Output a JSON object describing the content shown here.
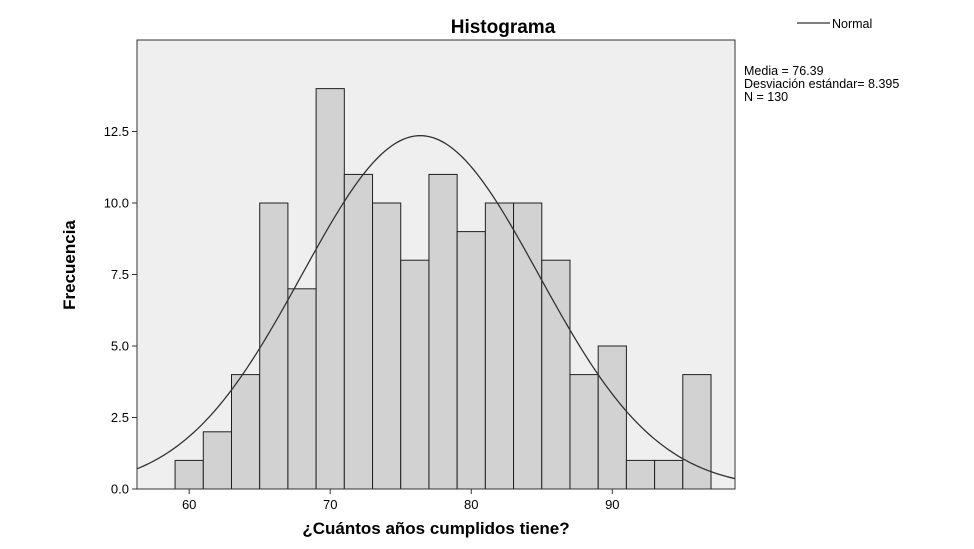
{
  "chart_data": {
    "type": "histogram",
    "title": "Histograma",
    "xlabel": "¿Cuántos años cumplidos tiene?",
    "ylabel": "Frecuencia",
    "bin_width": 2,
    "bins": [
      {
        "start": 59,
        "end": 61,
        "count": 1
      },
      {
        "start": 61,
        "end": 63,
        "count": 2
      },
      {
        "start": 63,
        "end": 65,
        "count": 4
      },
      {
        "start": 65,
        "end": 67,
        "count": 10
      },
      {
        "start": 67,
        "end": 69,
        "count": 7
      },
      {
        "start": 69,
        "end": 71,
        "count": 14
      },
      {
        "start": 71,
        "end": 73,
        "count": 11
      },
      {
        "start": 73,
        "end": 75,
        "count": 10
      },
      {
        "start": 75,
        "end": 77,
        "count": 8
      },
      {
        "start": 77,
        "end": 79,
        "count": 11
      },
      {
        "start": 79,
        "end": 81,
        "count": 9
      },
      {
        "start": 81,
        "end": 83,
        "count": 10
      },
      {
        "start": 83,
        "end": 85,
        "count": 10
      },
      {
        "start": 85,
        "end": 87,
        "count": 8
      },
      {
        "start": 87,
        "end": 89,
        "count": 4
      },
      {
        "start": 89,
        "end": 91,
        "count": 5
      },
      {
        "start": 91,
        "end": 93,
        "count": 1
      },
      {
        "start": 93,
        "end": 95,
        "count": 1
      },
      {
        "start": 95,
        "end": 97,
        "count": 4
      }
    ],
    "xlim": [
      56.3,
      98.7
    ],
    "ylim": [
      0,
      15.7
    ],
    "x_ticks": [
      60,
      70,
      80,
      90
    ],
    "y_ticks": [
      0.0,
      2.5,
      5.0,
      7.5,
      10.0,
      12.5
    ],
    "x_tick_labels": [
      "60",
      "70",
      "80",
      "90"
    ],
    "y_tick_labels": [
      "0.0",
      "2.5",
      "5.0",
      "7.5",
      "10.0",
      "12.5"
    ],
    "normal_curve": {
      "name": "Normal",
      "mean": 76.39,
      "sd": 8.395,
      "n": 130
    },
    "stats_lines": [
      "Media = 76.39",
      "Desviación estándar= 8.395",
      "N = 130"
    ],
    "legend": {
      "position": "top-right",
      "label": "Normal"
    },
    "grid": false,
    "colors": {
      "plot_background": "#efefef",
      "bar_fill": "#d2d2d2",
      "bar_stroke": "#202020",
      "curve": "#333333",
      "frame": "#333333"
    }
  }
}
